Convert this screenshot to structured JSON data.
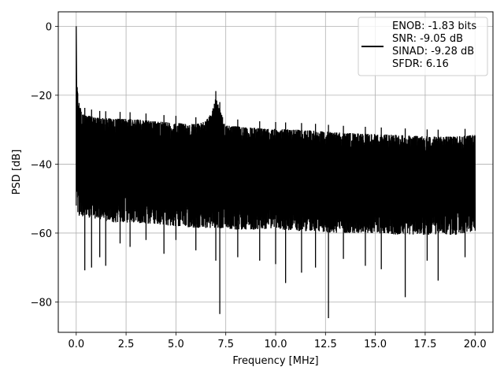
{
  "chart_data": {
    "type": "line",
    "title": "",
    "xlabel": "Frequency [MHz]",
    "ylabel": "PSD [dB]",
    "xlim": [
      -0.9,
      20.9
    ],
    "ylim": [
      -88.8,
      4.2
    ],
    "xticks": [
      0.0,
      2.5,
      5.0,
      7.5,
      10.0,
      12.5,
      15.0,
      17.5,
      20.0
    ],
    "xtick_labels": [
      "0.0",
      "2.5",
      "5.0",
      "7.5",
      "10.0",
      "12.5",
      "15.0",
      "17.5",
      "20.0"
    ],
    "yticks": [
      0,
      -20,
      -40,
      -60,
      -80
    ],
    "ytick_labels": [
      "0",
      "−20",
      "−40",
      "−60",
      "−80"
    ],
    "grid": true,
    "legend_position": "top-right",
    "series": [
      {
        "name": "ENOB: -1.83 bits\nSNR: -9.05 dB\nSINAD: -9.28 dB\nSFDR: 6.16",
        "color": "#000000",
        "upper_envelope": {
          "x": [
            0.0,
            0.04,
            0.1,
            0.3,
            1.0,
            2.0,
            3.0,
            4.0,
            5.0,
            6.0,
            6.5,
            6.8,
            7.0,
            7.2,
            7.5,
            8.0,
            9.0,
            10.0,
            11.0,
            12.0,
            12.5,
            13.0,
            14.0,
            15.0,
            16.0,
            17.0,
            18.0,
            19.0,
            20.0
          ],
          "y": [
            0.0,
            -15.0,
            -21.0,
            -25.5,
            -26.5,
            -26.8,
            -27.0,
            -27.6,
            -28.0,
            -28.4,
            -27.5,
            -25.0,
            -20.8,
            -24.0,
            -28.8,
            -29.0,
            -29.5,
            -29.8,
            -30.0,
            -30.3,
            -30.5,
            -30.8,
            -31.0,
            -31.3,
            -31.5,
            -31.8,
            -32.0,
            -32.0,
            -31.5
          ]
        },
        "lower_envelope": {
          "x": [
            0.0,
            0.05,
            0.2,
            1.0,
            2.0,
            3.0,
            4.0,
            5.0,
            6.0,
            7.0,
            8.0,
            9.0,
            10.0,
            11.0,
            12.0,
            13.0,
            14.0,
            15.0,
            16.0,
            17.0,
            18.0,
            19.0,
            20.0
          ],
          "y": [
            -52.0,
            -55.0,
            -55.0,
            -56.0,
            -57.0,
            -57.0,
            -57.5,
            -58.0,
            -58.5,
            -58.5,
            -59.0,
            -59.0,
            -59.0,
            -59.5,
            -59.5,
            -60.0,
            -60.0,
            -60.0,
            -60.5,
            -60.5,
            -60.5,
            -60.5,
            -59.5
          ]
        },
        "notches": [
          {
            "x": 0.43,
            "y": -70.8
          },
          {
            "x": 0.77,
            "y": -70.0
          },
          {
            "x": 1.18,
            "y": -67.0
          },
          {
            "x": 1.48,
            "y": -69.5
          },
          {
            "x": 2.2,
            "y": -63.0
          },
          {
            "x": 2.7,
            "y": -64.0
          },
          {
            "x": 3.5,
            "y": -62.0
          },
          {
            "x": 4.4,
            "y": -66.0
          },
          {
            "x": 5.0,
            "y": -62.0
          },
          {
            "x": 6.0,
            "y": -65.0
          },
          {
            "x": 7.0,
            "y": -68.0
          },
          {
            "x": 7.2,
            "y": -83.5
          },
          {
            "x": 8.1,
            "y": -67.0
          },
          {
            "x": 9.2,
            "y": -68.0
          },
          {
            "x": 10.0,
            "y": -69.0
          },
          {
            "x": 10.5,
            "y": -74.5
          },
          {
            "x": 11.3,
            "y": -71.5
          },
          {
            "x": 12.0,
            "y": -70.0
          },
          {
            "x": 12.65,
            "y": -84.7
          },
          {
            "x": 13.4,
            "y": -67.5
          },
          {
            "x": 14.5,
            "y": -69.5
          },
          {
            "x": 15.3,
            "y": -70.5
          },
          {
            "x": 16.5,
            "y": -78.6
          },
          {
            "x": 17.6,
            "y": -68.0
          },
          {
            "x": 18.15,
            "y": -73.8
          },
          {
            "x": 19.5,
            "y": -67.0
          }
        ]
      }
    ]
  }
}
